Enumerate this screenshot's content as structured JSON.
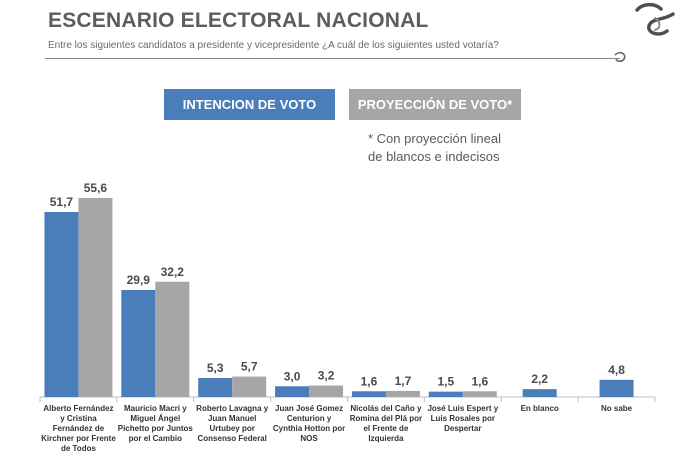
{
  "header": {
    "title": "ESCENARIO ELECTORAL NACIONAL",
    "subtitle": "Entre los siguientes candidatos a presidente y vicepresidente ¿A cuál de los siguientes usted votaría?"
  },
  "legend": {
    "intencion_label": "INTENCION DE VOTO",
    "proyeccion_label": "PROYECCIÓN DE VOTO*"
  },
  "note": {
    "line1": "* Con proyección lineal",
    "line2": "de blancos e indecisos"
  },
  "logo_icon": "s-swirl-logo",
  "colors": {
    "intencion": "#4a7ebb",
    "proyeccion": "#a6a6a6",
    "title": "#5d5d5d"
  },
  "chart_data": {
    "type": "bar",
    "categories": [
      "Alberto Fernández y Cristina Fernández de Kirchner por Frente de Todos",
      "Mauricio Macri y Miguel Ángel Pichetto por Juntos por el Cambio",
      "Roberto Lavagna y Juan Manuel Urtubey por Consenso Federal",
      "Juan José Gomez Centurion y Cynthia Hotton por NOS",
      "Nicolás del Caño y Romina del Plá por el Frente de Izquierda",
      "José Luis Espert y Luis Rosales por Despertar",
      "En blanco",
      "No sabe"
    ],
    "category_lines": [
      [
        "Alberto Fernández",
        "y Cristina",
        "Fernández de",
        "Kirchner por Frente",
        "de Todos"
      ],
      [
        "Mauricio Macri y",
        "Miguel Ángel",
        "Pichetto por Juntos",
        "por el Cambio"
      ],
      [
        "Roberto Lavagna y",
        "Juan Manuel",
        "Urtubey por",
        "Consenso Federal"
      ],
      [
        "Juan José Gomez",
        "Centurion y",
        "Cynthia Hotton por",
        "NOS"
      ],
      [
        "Nicolás del Caño y",
        "Romina del Plá por",
        "el Frente de",
        "Izquierda"
      ],
      [
        "José Luis Espert y",
        "Luis Rosales por",
        "Despertar"
      ],
      [
        "En blanco"
      ],
      [
        "No sabe"
      ]
    ],
    "series": [
      {
        "name": "INTENCION DE VOTO",
        "values": [
          51.7,
          29.9,
          5.3,
          3.0,
          1.6,
          1.5,
          2.2,
          4.8
        ],
        "labels": [
          "51,7",
          "29,9",
          "5,3",
          "3,0",
          "1,6",
          "1,5",
          "2,2",
          "4,8"
        ]
      },
      {
        "name": "PROYECCIÓN DE VOTO*",
        "values": [
          55.6,
          32.2,
          5.7,
          3.2,
          1.7,
          1.6,
          null,
          null
        ],
        "labels": [
          "55,6",
          "32,2",
          "5,7",
          "3,2",
          "1,7",
          "1,6",
          null,
          null
        ]
      }
    ],
    "ylim": [
      0,
      55.6
    ],
    "grid": false,
    "legend_position": "top-center"
  }
}
